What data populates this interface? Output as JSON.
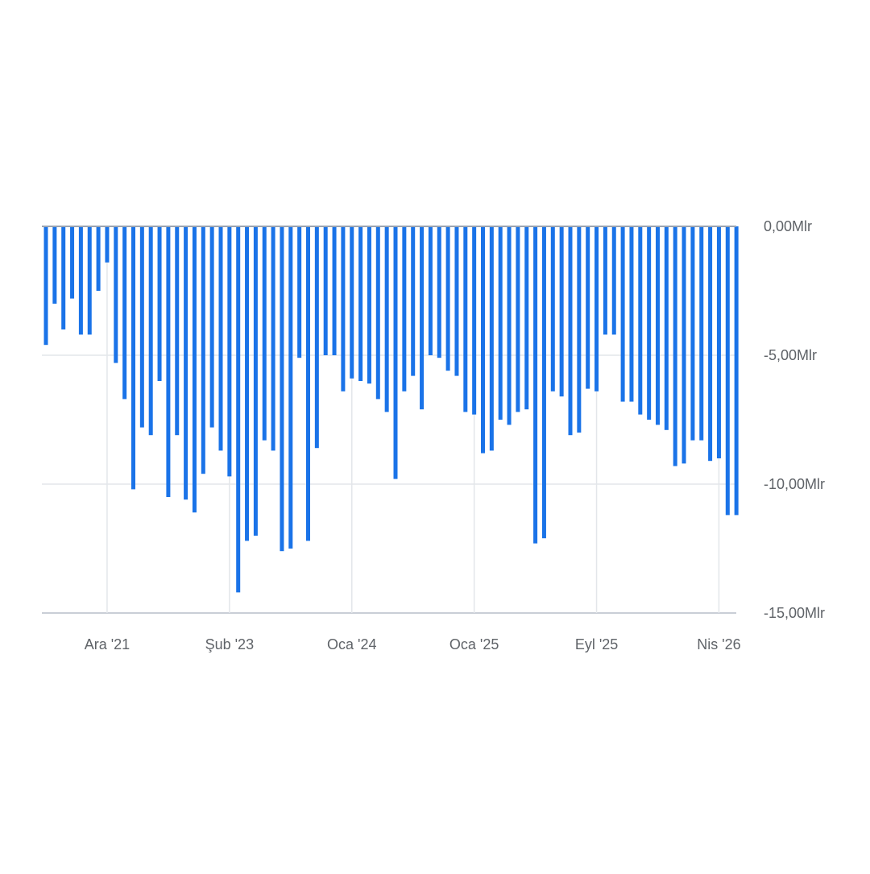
{
  "chart_data": {
    "type": "bar",
    "title": "",
    "xlabel": "",
    "ylabel": "",
    "ylim": [
      -15,
      0
    ],
    "y_ticks": [
      0,
      -5,
      -10,
      -15
    ],
    "y_tick_labels": [
      "0,00Mlr",
      "-5,00Mlr",
      "-10,00Mlr",
      "-15,00Mlr"
    ],
    "x_tick_labels": [
      "Ara '21",
      "Şub '23",
      "Oca '24",
      "Oca '25",
      "Eyl '25",
      "Nis '26"
    ],
    "x_tick_bar_index": [
      7,
      21,
      35,
      49,
      63,
      77
    ],
    "grid": true,
    "legend": "none",
    "bar_color": "#1a73e8",
    "values": [
      -4.6,
      -3.0,
      -4.0,
      -2.8,
      -4.2,
      -4.2,
      -2.5,
      -1.4,
      -5.3,
      -6.7,
      -10.2,
      -7.8,
      -8.1,
      -6.0,
      -10.5,
      -8.1,
      -10.6,
      -11.1,
      -9.6,
      -7.8,
      -8.7,
      -9.7,
      -14.2,
      -12.2,
      -12.0,
      -8.3,
      -8.7,
      -12.6,
      -12.5,
      -5.1,
      -12.2,
      -8.6,
      -5.0,
      -5.0,
      -6.4,
      -5.9,
      -6.0,
      -6.1,
      -6.7,
      -7.2,
      -9.8,
      -6.4,
      -5.8,
      -7.1,
      -5.0,
      -5.1,
      -5.6,
      -5.8,
      -7.2,
      -7.3,
      -8.8,
      -8.7,
      -7.5,
      -7.7,
      -7.2,
      -7.1,
      -12.3,
      -12.1,
      -6.4,
      -6.6,
      -8.1,
      -8.0,
      -6.3,
      -6.4,
      -4.2,
      -4.2,
      -6.8,
      -6.8,
      -7.3,
      -7.5,
      -7.7,
      -7.9,
      -9.3,
      -9.2,
      -8.3,
      -8.3,
      -9.1,
      -9.0,
      -11.2,
      -11.2
    ]
  }
}
